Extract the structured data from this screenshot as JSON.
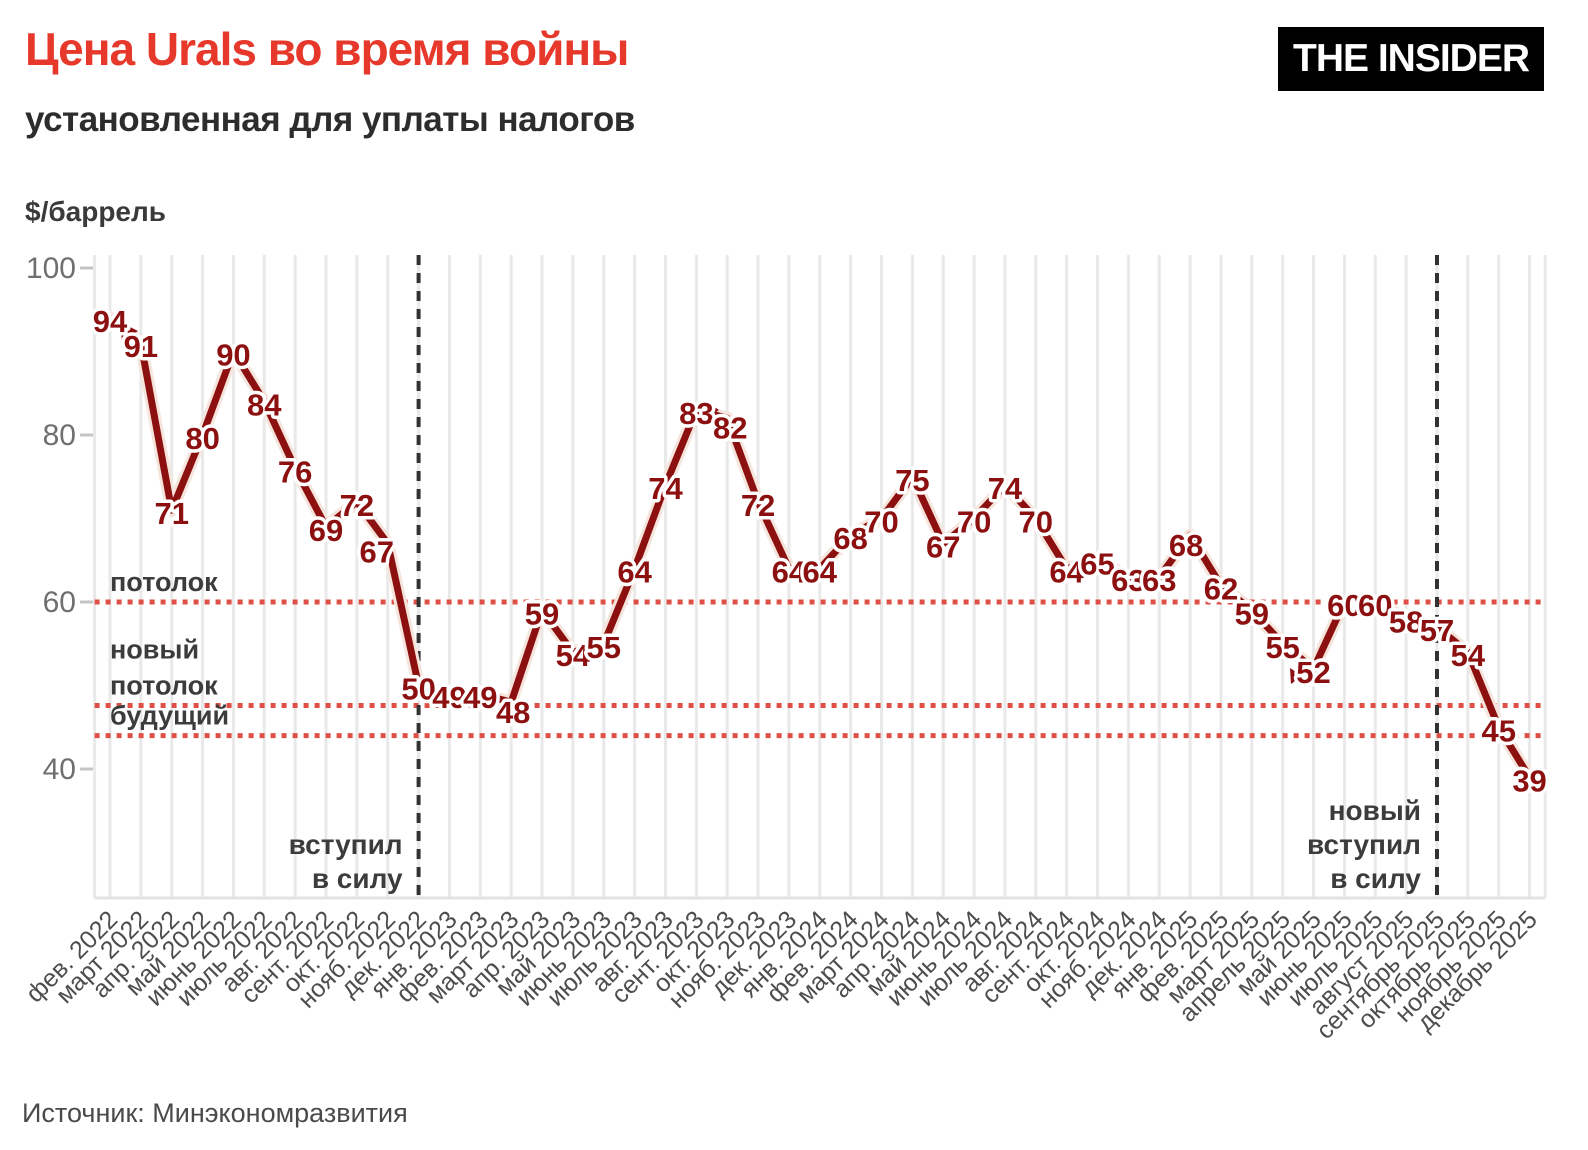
{
  "header": {
    "title": "Цена Urals во время войны",
    "subtitle": "установленная для уплаты налогов",
    "logo": "THE INSIDER"
  },
  "footer": {
    "source": "Источник: Минэкономразвития"
  },
  "chart_data": {
    "type": "line",
    "title": "Цена Urals во время войны — установленная для уплаты налогов",
    "xlabel": "",
    "ylabel": "$/баррель",
    "categories": [
      "фев. 2022",
      "март 2022",
      "апр. 2022",
      "май 2022",
      "июнь 2022",
      "июль 2022",
      "авг. 2022",
      "сент. 2022",
      "окт. 2022",
      "нояб. 2022",
      "дек. 2022",
      "янв. 2023",
      "фев. 2023",
      "март 2023",
      "апр. 2023",
      "май 2023",
      "июнь 2023",
      "июль 2023",
      "авг. 2023",
      "сент. 2023",
      "окт. 2023",
      "нояб. 2023",
      "дек. 2023",
      "янв. 2024",
      "фев. 2024",
      "март 2024",
      "апр. 2024",
      "май 2024",
      "июнь 2024",
      "июль 2024",
      "авг. 2024",
      "сент. 2024",
      "окт. 2024",
      "нояб. 2024",
      "дек. 2024",
      "янв. 2025",
      "фев. 2025",
      "март 2025",
      "апрель 2025",
      "май 2025",
      "июнь 2025",
      "июль 2025",
      "август 2025",
      "сентябрь 2025",
      "октябрь 2025",
      "ноябрь 2025",
      "декабрь 2025"
    ],
    "values": [
      94,
      91,
      71,
      80,
      90,
      84,
      76,
      69,
      72,
      67,
      50,
      49,
      49,
      48,
      59,
      54,
      55,
      64,
      74,
      83,
      82,
      72,
      64,
      64,
      68,
      70,
      75,
      67,
      70,
      74,
      70,
      64,
      65,
      63,
      63,
      68,
      62,
      59,
      55,
      52,
      60,
      60,
      58,
      57,
      54,
      45,
      39
    ],
    "yticks": [
      100,
      80,
      60,
      40
    ],
    "ylim": [
      24,
      102
    ],
    "grid": "vertical-only",
    "legend_position": "none",
    "reference_lines": [
      {
        "id": "cap",
        "value": 60,
        "label_lines": [
          "потолок"
        ]
      },
      {
        "id": "new-cap",
        "value": 47.6,
        "label_lines": [
          "новый",
          "потолок"
        ]
      },
      {
        "id": "future-cap",
        "value": 44,
        "label_lines": [
          "будущий"
        ]
      }
    ],
    "event_lines": [
      {
        "category": "дек. 2022",
        "label_lines": [
          "вступил",
          "в силу"
        ]
      },
      {
        "category": "сентябрь 2025",
        "label_lines": [
          "новый",
          "вступил",
          "в силу"
        ]
      }
    ],
    "colors": {
      "accent_red": "#e6392b",
      "line": "#8d1010",
      "cap_line": "#de5045",
      "event_line": "#323232",
      "gridline": "#e9e9e9"
    }
  }
}
